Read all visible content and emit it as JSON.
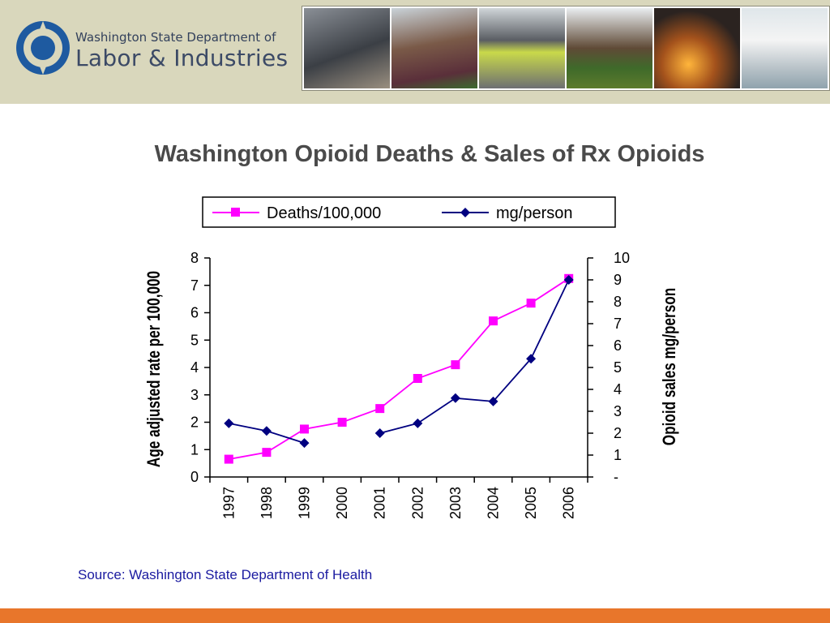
{
  "header": {
    "org_line1": "Washington State Department of",
    "org_line2": "Labor & Industries",
    "photos": [
      "worker-respirator-photo",
      "field-harvest-photo",
      "construction-worker-photo",
      "farm-workers-photo",
      "foundry-worker-photo",
      "lab-technician-photo"
    ]
  },
  "title": "Washington Opioid Deaths & Sales of Rx Opioids",
  "source": "Source: Washington State Department of Health",
  "colors": {
    "deaths": "#ff00ff",
    "mg": "#000080",
    "header_bg": "#d9d7bc",
    "bottom_bar": "#e8762b",
    "logo": "#1e5aa0"
  },
  "chart_data": {
    "type": "line",
    "title": "Washington Opioid Deaths & Sales of Rx Opioids",
    "categories": [
      "1997",
      "1998",
      "1999",
      "2000",
      "2001",
      "2002",
      "2003",
      "2004",
      "2005",
      "2006"
    ],
    "y_left_label": "Age adjusted rate per 100,000",
    "y_right_label": "Opioid sales mg/person",
    "y_left_range": [
      0,
      8
    ],
    "y_right_range": [
      0,
      10
    ],
    "y_left_ticks": [
      "0",
      "1",
      "2",
      "3",
      "4",
      "5",
      "6",
      "7",
      "8"
    ],
    "y_right_ticks": [
      "-",
      "1",
      "2",
      "3",
      "4",
      "5",
      "6",
      "7",
      "8",
      "9",
      "10"
    ],
    "legend_position": "top",
    "grid": false,
    "series": [
      {
        "name": "Deaths/100,000",
        "axis": "left",
        "marker": "square",
        "values": [
          0.65,
          0.9,
          1.75,
          2.0,
          2.5,
          3.6,
          4.1,
          5.7,
          6.35,
          7.25
        ]
      },
      {
        "name": "mg/person",
        "axis": "right",
        "marker": "diamond",
        "values": [
          2.45,
          2.1,
          1.55,
          null,
          2.0,
          2.45,
          3.6,
          3.45,
          5.4,
          9.0
        ]
      }
    ]
  }
}
